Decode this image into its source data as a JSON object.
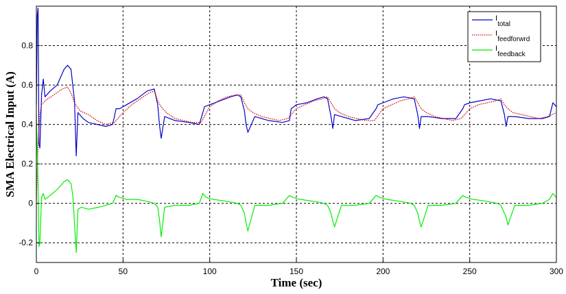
{
  "chart_data": {
    "type": "line",
    "title": "",
    "xlabel": "Time (sec)",
    "ylabel": "SMA Electrical Input (A)",
    "xlim": [
      0,
      300
    ],
    "ylim": [
      -0.3,
      1.0
    ],
    "xticks": [
      0,
      50,
      100,
      150,
      200,
      250,
      300
    ],
    "yticks": [
      -0.2,
      0,
      0.2,
      0.4,
      0.6,
      0.8
    ],
    "ytick_labels": [
      "-0.2",
      "0",
      "0.2",
      "0.4",
      "0.6",
      "0.8"
    ],
    "grid": true,
    "legend_position": "top-right",
    "series": [
      {
        "name": "I_total",
        "legend_main": "I",
        "legend_sub": "total",
        "color": "#0000cc",
        "style": "solid",
        "x": [
          0,
          0.5,
          1,
          1.5,
          2,
          3,
          4,
          5,
          8,
          12,
          16,
          18,
          20,
          22,
          23,
          24,
          27,
          30,
          35,
          40,
          44,
          45,
          46,
          48,
          52,
          58,
          64,
          68,
          70,
          71,
          72,
          74,
          80,
          88,
          94,
          96,
          97,
          100,
          106,
          112,
          116,
          118,
          120,
          121,
          122,
          126,
          134,
          142,
          146,
          147,
          150,
          156,
          162,
          166,
          168,
          170,
          171,
          172,
          176,
          184,
          192,
          196,
          197,
          200,
          206,
          212,
          218,
          220,
          221,
          222,
          226,
          234,
          242,
          246,
          247,
          250,
          256,
          262,
          268,
          270,
          271,
          272,
          276,
          284,
          292,
          296,
          298,
          300
        ],
        "y": [
          0.5,
          0.95,
          0.99,
          0.3,
          0.28,
          0.55,
          0.63,
          0.54,
          0.57,
          0.6,
          0.68,
          0.7,
          0.68,
          0.52,
          0.24,
          0.46,
          0.43,
          0.41,
          0.4,
          0.39,
          0.4,
          0.44,
          0.48,
          0.48,
          0.5,
          0.53,
          0.57,
          0.58,
          0.5,
          0.4,
          0.33,
          0.44,
          0.42,
          0.41,
          0.4,
          0.46,
          0.49,
          0.5,
          0.52,
          0.54,
          0.55,
          0.54,
          0.47,
          0.4,
          0.36,
          0.44,
          0.42,
          0.41,
          0.42,
          0.48,
          0.5,
          0.51,
          0.53,
          0.54,
          0.53,
          0.44,
          0.38,
          0.45,
          0.44,
          0.42,
          0.43,
          0.48,
          0.5,
          0.51,
          0.53,
          0.54,
          0.53,
          0.45,
          0.38,
          0.44,
          0.44,
          0.43,
          0.43,
          0.48,
          0.5,
          0.51,
          0.52,
          0.53,
          0.52,
          0.45,
          0.39,
          0.44,
          0.44,
          0.43,
          0.43,
          0.44,
          0.51,
          0.49
        ]
      },
      {
        "name": "I_feedforwrd",
        "legend_main": "I",
        "legend_sub": "feedforwrd",
        "color": "#cc0000",
        "style": "dotted",
        "x": [
          0,
          1,
          2,
          3,
          5,
          10,
          15,
          18,
          20,
          22,
          25,
          30,
          35,
          40,
          45,
          50,
          55,
          60,
          65,
          68,
          70,
          72,
          75,
          80,
          85,
          90,
          95,
          100,
          105,
          110,
          115,
          118,
          120,
          122,
          125,
          130,
          135,
          140,
          145,
          150,
          155,
          160,
          165,
          168,
          170,
          172,
          175,
          180,
          185,
          190,
          195,
          200,
          205,
          210,
          215,
          218,
          220,
          222,
          225,
          230,
          235,
          240,
          245,
          250,
          255,
          260,
          265,
          268,
          270,
          272,
          275,
          280,
          285,
          290,
          295,
          300
        ],
        "y": [
          0.02,
          0.3,
          0.45,
          0.5,
          0.52,
          0.55,
          0.58,
          0.59,
          0.56,
          0.51,
          0.47,
          0.45,
          0.42,
          0.4,
          0.41,
          0.46,
          0.5,
          0.53,
          0.56,
          0.57,
          0.52,
          0.49,
          0.46,
          0.43,
          0.42,
          0.41,
          0.41,
          0.49,
          0.52,
          0.54,
          0.55,
          0.55,
          0.51,
          0.48,
          0.46,
          0.44,
          0.43,
          0.42,
          0.43,
          0.48,
          0.5,
          0.52,
          0.53,
          0.54,
          0.51,
          0.48,
          0.46,
          0.44,
          0.43,
          0.42,
          0.42,
          0.48,
          0.5,
          0.52,
          0.53,
          0.54,
          0.51,
          0.48,
          0.46,
          0.44,
          0.43,
          0.42,
          0.43,
          0.48,
          0.5,
          0.51,
          0.52,
          0.53,
          0.5,
          0.48,
          0.46,
          0.45,
          0.44,
          0.43,
          0.44,
          0.46
        ]
      },
      {
        "name": "I_feedback",
        "legend_main": "I",
        "legend_sub": "feedback",
        "color": "#00ee00",
        "style": "solid",
        "x": [
          0,
          1,
          1.5,
          2,
          3,
          4,
          5,
          8,
          12,
          16,
          18,
          20,
          21,
          22,
          23,
          24,
          26,
          30,
          36,
          40,
          44,
          46,
          48,
          52,
          58,
          64,
          68,
          70,
          71,
          72,
          74,
          80,
          88,
          94,
          96,
          98,
          102,
          110,
          116,
          118,
          120,
          121,
          122,
          126,
          134,
          142,
          146,
          148,
          152,
          160,
          166,
          168,
          170,
          171,
          172,
          176,
          184,
          192,
          196,
          198,
          202,
          210,
          216,
          218,
          220,
          221,
          222,
          226,
          234,
          242,
          246,
          248,
          252,
          260,
          266,
          268,
          270,
          271,
          272,
          276,
          284,
          292,
          296,
          298,
          300
        ],
        "y": [
          0.45,
          0.1,
          -0.22,
          -0.2,
          0.03,
          0.05,
          0.02,
          0.04,
          0.07,
          0.11,
          0.12,
          0.1,
          0.04,
          -0.1,
          -0.25,
          -0.03,
          -0.02,
          -0.03,
          -0.02,
          -0.01,
          0.0,
          0.04,
          0.03,
          0.02,
          0.02,
          0.01,
          0.0,
          -0.02,
          -0.08,
          -0.17,
          -0.02,
          -0.01,
          -0.01,
          0.0,
          0.05,
          0.03,
          0.02,
          0.01,
          0.0,
          -0.01,
          -0.05,
          -0.1,
          -0.14,
          -0.01,
          -0.01,
          0.0,
          0.04,
          0.03,
          0.02,
          0.01,
          0.0,
          -0.01,
          -0.05,
          -0.09,
          -0.12,
          -0.01,
          -0.01,
          0.0,
          0.04,
          0.03,
          0.02,
          0.01,
          0.0,
          -0.01,
          -0.05,
          -0.09,
          -0.12,
          -0.01,
          -0.01,
          0.0,
          0.04,
          0.03,
          0.02,
          0.01,
          0.0,
          -0.01,
          -0.05,
          -0.07,
          -0.11,
          -0.01,
          -0.01,
          0.0,
          0.02,
          0.05,
          0.03
        ]
      }
    ]
  }
}
